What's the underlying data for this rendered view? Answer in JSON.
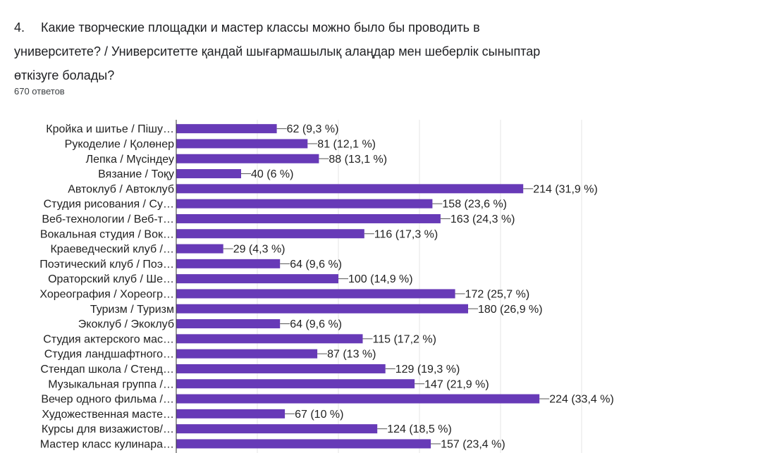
{
  "question": {
    "number": "4.",
    "text": "Какие творческие площадки и мастер классы можно было бы проводить в университете?  /  Университетте қандай шығармашылық алаңдар мен шеберлік сыныптар өткізуге болады?"
  },
  "responses_label": "670 ответов",
  "colors": {
    "bar": "#673ab7",
    "grid": "#e5e5e5",
    "axis": "#333333"
  },
  "chart_data": {
    "type": "bar",
    "orientation": "horizontal",
    "title": "",
    "xlabel": "",
    "ylabel": "",
    "grid": true,
    "categories": [
      "Кройка и шитье / Пішу…",
      "Рукоделие / Қолөнер",
      "Лепка / Мүсіндеу",
      "Вязание / Тоқу",
      "Автоклуб / Автоклуб",
      "Студия рисования / Су…",
      "Веб-технологии / Веб-т…",
      "Вокальная студия / Вок…",
      "Краеведческий клуб /…",
      "Поэтический клуб / Поэ…",
      "Ораторский клуб / Ше…",
      "Хореография / Хореогр…",
      "Туризм / Туризм",
      "Экоклуб / Экоклуб",
      "Студия актерского мас…",
      "Студия ландшафтного…",
      "Стендап школа / Стенд…",
      "Музыкальная группа /…",
      "Вечер одного фильма /…",
      "Художественная масте…",
      "Курсы для визажистов/…",
      "Мастер класс кулинара…"
    ],
    "values": [
      62,
      81,
      88,
      40,
      214,
      158,
      163,
      116,
      29,
      64,
      100,
      172,
      180,
      64,
      115,
      87,
      129,
      147,
      224,
      67,
      124,
      157
    ],
    "value_labels": [
      "62 (9,3 %)",
      "81 (12,1 %)",
      "88 (13,1 %)",
      "40 (6 %)",
      "214 (31,9 %)",
      "158 (23,6 %)",
      "163 (24,3 %)",
      "116 (17,3 %)",
      "29 (4,3 %)",
      "64 (9,6 %)",
      "100 (14,9 %)",
      "172 (25,7 %)",
      "180 (26,9 %)",
      "64 (9,6 %)",
      "115 (17,2 %)",
      "87 (13 %)",
      "129 (19,3 %)",
      "147 (21,9 %)",
      "224 (33,4 %)",
      "67 (10 %)",
      "124 (18,5 %)",
      "157 (23,4 %)"
    ]
  }
}
